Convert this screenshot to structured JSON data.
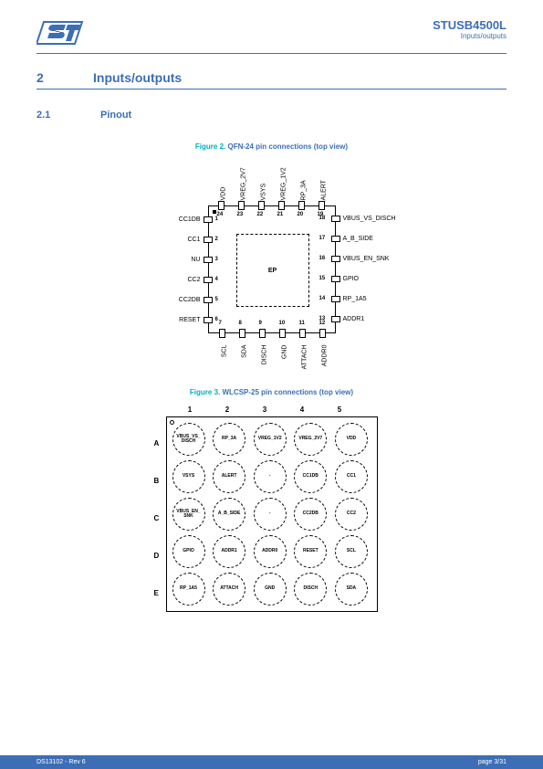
{
  "header": {
    "part": "STUSB4500L",
    "sub": "Inputs/outputs"
  },
  "section": {
    "num": "2",
    "title": "Inputs/outputs"
  },
  "subsection": {
    "num": "2.1",
    "title": "Pinout"
  },
  "figure2": {
    "label": "Figure 2.",
    "title": "QFN-24 pin connections (top view)"
  },
  "figure3": {
    "label": "Figure 3.",
    "title": "WLCSP-25 pin connections (top view)"
  },
  "qfn": {
    "ep": "EP",
    "left": [
      {
        "n": "1",
        "l": "CC1DB"
      },
      {
        "n": "2",
        "l": "CC1"
      },
      {
        "n": "3",
        "l": "NU"
      },
      {
        "n": "4",
        "l": "CC2"
      },
      {
        "n": "5",
        "l": "CC2DB"
      },
      {
        "n": "6",
        "l": "RESET"
      }
    ],
    "bottom": [
      {
        "n": "7",
        "l": "SCL"
      },
      {
        "n": "8",
        "l": "SDA"
      },
      {
        "n": "9",
        "l": "DISCH"
      },
      {
        "n": "10",
        "l": "GND"
      },
      {
        "n": "11",
        "l": "ATTACH"
      },
      {
        "n": "12",
        "l": "ADDR0"
      }
    ],
    "right": [
      {
        "n": "13",
        "l": "ADDR1"
      },
      {
        "n": "14",
        "l": "RP_1A5"
      },
      {
        "n": "15",
        "l": "GPIO"
      },
      {
        "n": "16",
        "l": "VBUS_EN_SNK"
      },
      {
        "n": "17",
        "l": "A_B_SIDE"
      },
      {
        "n": "18",
        "l": "VBUS_VS_DISCH"
      }
    ],
    "top": [
      {
        "n": "19",
        "l": "ALERT"
      },
      {
        "n": "20",
        "l": "RP_3A"
      },
      {
        "n": "21",
        "l": "VREG_1V2"
      },
      {
        "n": "22",
        "l": "VSYS"
      },
      {
        "n": "23",
        "l": "VREG_2V7"
      },
      {
        "n": "24",
        "l": "VDD"
      }
    ]
  },
  "csp": {
    "cols": [
      "1",
      "2",
      "3",
      "4",
      "5"
    ],
    "rows": [
      "A",
      "B",
      "C",
      "D",
      "E"
    ],
    "cells": [
      [
        "VBUS_VS_DISCH",
        "RP_3A",
        "VREG_1V2",
        "VREG_2V7",
        "VDD"
      ],
      [
        "VSYS",
        "ALERT",
        "-",
        "CC1DB",
        "CC1"
      ],
      [
        "VBUS_EN_SNK",
        "A_B_SIDE",
        "-",
        "CC2DB",
        "CC2"
      ],
      [
        "GPIO",
        "ADDR1",
        "ADDR0",
        "RESET",
        "SCL"
      ],
      [
        "RP_1A5",
        "ATTACH",
        "GND",
        "DISCH",
        "SDA"
      ]
    ]
  },
  "footer": {
    "left": "DS13102 - Rev 6",
    "right": "page 3/31"
  }
}
